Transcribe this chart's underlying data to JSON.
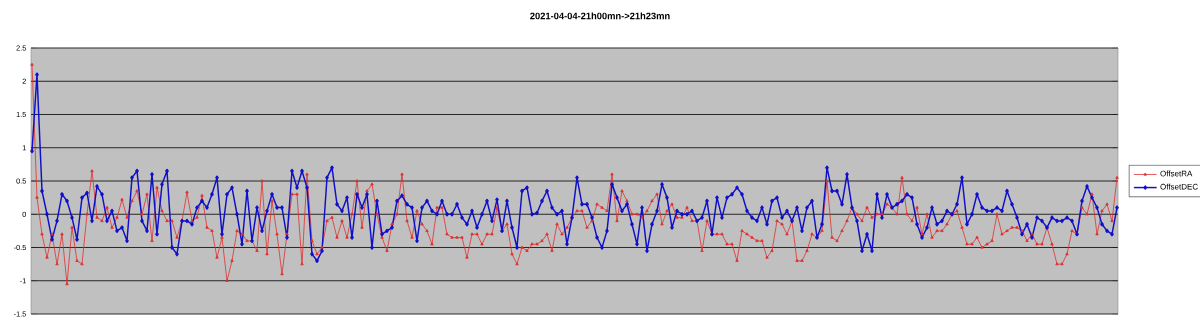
{
  "chart_data": {
    "type": "line",
    "title": "2021-04-04-21h00mn->21h23mn",
    "categories": [
      null,
      null,
      null,
      null,
      null,
      null,
      null,
      null,
      null,
      null,
      null,
      null,
      null,
      null,
      null,
      null,
      null,
      null,
      null,
      null,
      null,
      null,
      null,
      null,
      null,
      null,
      null,
      null,
      null,
      null,
      null,
      null,
      null,
      null,
      null,
      null,
      null,
      null,
      null,
      null,
      null,
      null,
      null,
      null,
      null,
      null,
      null,
      null,
      null,
      null,
      null,
      null,
      null,
      null,
      null,
      null,
      null,
      null,
      null,
      null,
      null,
      null,
      null,
      null,
      null,
      null,
      null,
      null,
      null,
      null,
      null,
      null,
      null,
      null,
      null,
      null,
      null,
      null,
      null,
      null,
      null,
      null,
      null,
      null,
      null,
      null,
      null,
      null,
      null,
      null,
      null,
      null,
      null,
      null,
      null,
      null,
      null,
      null,
      null,
      null,
      null,
      null,
      null,
      null,
      null,
      null,
      null,
      null,
      null,
      null,
      null,
      null,
      null,
      null,
      null,
      null,
      null,
      null,
      null,
      null,
      null,
      null,
      null,
      null,
      null,
      null,
      null,
      null,
      null,
      null,
      null,
      null,
      null,
      null,
      null,
      null,
      null,
      null,
      null,
      null,
      null,
      null,
      null,
      null,
      null,
      null,
      null,
      null,
      null,
      null,
      null,
      null,
      null,
      null,
      null,
      null,
      null,
      null,
      null,
      null,
      null,
      null,
      null,
      null,
      null,
      null,
      null,
      null,
      null,
      null,
      null,
      null,
      null,
      null,
      null,
      null,
      null,
      null,
      null,
      null,
      null,
      null,
      null,
      null,
      null,
      null,
      null,
      null,
      null,
      null,
      null,
      null,
      null,
      null,
      null,
      null,
      null,
      null,
      null,
      null,
      null,
      null,
      null,
      null,
      null,
      null,
      null,
      null,
      null,
      null,
      null,
      null,
      null,
      null,
      null,
      null,
      null,
      null
    ],
    "ylim": [
      -1.5,
      2.5
    ],
    "yticks": [
      {
        "value": 2.5,
        "label": "2.5"
      },
      {
        "value": 2,
        "label": "2"
      },
      {
        "value": 1.5,
        "label": "1.5"
      },
      {
        "value": 1,
        "label": "1"
      },
      {
        "value": 0.5,
        "label": "0.5"
      },
      {
        "value": 0,
        "label": "0"
      },
      {
        "value": -0.5,
        "label": "-0.5"
      },
      {
        "value": -1,
        "label": "-1"
      },
      {
        "value": -1.5,
        "label": "-1.5"
      }
    ],
    "tick_labels": "y",
    "grid": "y",
    "legend": "right",
    "series": [
      {
        "name": "OffsetRA",
        "color": "#e03030",
        "marker": "triangle",
        "values": [
          2.25,
          0.25,
          -0.3,
          -0.65,
          -0.3,
          -0.75,
          -0.3,
          -1.05,
          -0.2,
          -0.7,
          -0.75,
          0,
          0.65,
          -0.05,
          -0.1,
          0.1,
          -0.2,
          -0.05,
          0.22,
          -0.05,
          0.2,
          0.35,
          0,
          0.3,
          -0.4,
          0.4,
          0.05,
          -0.1,
          -0.1,
          -0.35,
          -0.1,
          0.33,
          -0.1,
          -0.05,
          0.28,
          -0.2,
          -0.25,
          -0.65,
          -0.35,
          -1,
          -0.7,
          -0.25,
          -0.3,
          -0.4,
          -0.4,
          -0.55,
          0.5,
          -0.6,
          0.2,
          -0.3,
          -0.9,
          -0.3,
          0.3,
          0.3,
          -0.75,
          0.6,
          -0.4,
          -0.6,
          -0.5,
          -0.1,
          -0.05,
          -0.35,
          -0.1,
          -0.35,
          0,
          0.5,
          -0.2,
          0.35,
          0.45,
          0,
          -0.35,
          -0.55,
          -0.15,
          0,
          0.6,
          -0.1,
          -0.35,
          0.05,
          -0.15,
          -0.25,
          -0.45,
          0.1,
          0.1,
          -0.3,
          -0.35,
          -0.35,
          -0.35,
          -0.65,
          -0.3,
          -0.3,
          -0.45,
          -0.3,
          -0.3,
          0.1,
          -0.25,
          -0.15,
          -0.6,
          -0.75,
          -0.5,
          -0.55,
          -0.45,
          -0.45,
          -0.4,
          -0.3,
          -0.55,
          -0.15,
          -0.3,
          -0.2,
          -0.05,
          0.05,
          0.05,
          -0.2,
          -0.1,
          0.15,
          0.1,
          0.05,
          0.6,
          -0.1,
          0.35,
          0.2,
          0,
          0,
          -0.05,
          0.05,
          0.2,
          0.3,
          -0.15,
          0.05,
          0.15,
          -0.05,
          -0.05,
          0.1,
          -0.1,
          -0.1,
          -0.55,
          -0.1,
          -0.3,
          -0.3,
          -0.3,
          -0.45,
          -0.45,
          -0.7,
          -0.25,
          -0.3,
          -0.35,
          -0.4,
          -0.4,
          -0.65,
          -0.55,
          -0.1,
          -0.15,
          -0.3,
          -0.1,
          -0.7,
          -0.7,
          -0.55,
          -0.3,
          -0.35,
          -0.25,
          0.5,
          -0.35,
          -0.4,
          -0.25,
          -0.1,
          0.1,
          0,
          -0.1,
          0.1,
          -0.05,
          0,
          0,
          0.15,
          0.1,
          0,
          0.55,
          0,
          -0.1,
          0.1,
          -0.3,
          0,
          -0.35,
          -0.25,
          -0.25,
          -0.15,
          0,
          0.05,
          -0.2,
          -0.45,
          -0.45,
          -0.35,
          -0.5,
          -0.45,
          -0.4,
          0,
          -0.3,
          -0.25,
          -0.2,
          -0.2,
          -0.25,
          -0.4,
          -0.3,
          -0.45,
          -0.45,
          -0.2,
          -0.45,
          -0.75,
          -0.75,
          -0.6,
          -0.25,
          -0.3,
          0.1,
          0,
          0.3,
          -0.3,
          0.05,
          0.15,
          -0.1,
          0.55
        ]
      },
      {
        "name": "OffsetDEC",
        "color": "#1010c8",
        "marker": "diamond",
        "values": [
          0.95,
          2.1,
          0.35,
          0,
          -0.38,
          -0.1,
          0.3,
          0.2,
          -0.05,
          -0.38,
          0.25,
          0.32,
          -0.1,
          0.42,
          0.3,
          -0.1,
          0.05,
          -0.25,
          -0.2,
          -0.4,
          0.55,
          0.65,
          -0.1,
          -0.25,
          0.6,
          -0.3,
          0.45,
          0.65,
          -0.5,
          -0.6,
          -0.1,
          -0.1,
          -0.15,
          0.1,
          0.2,
          0.1,
          0.3,
          0.55,
          -0.3,
          0.3,
          0.4,
          0,
          -0.45,
          0.35,
          -0.4,
          0.1,
          -0.25,
          0.05,
          0.3,
          0.1,
          0.1,
          -0.35,
          0.65,
          0.4,
          0.65,
          0.4,
          -0.6,
          -0.7,
          -0.55,
          0.55,
          0.7,
          0.15,
          0.05,
          0.25,
          -0.35,
          0.3,
          0.1,
          0.3,
          -0.5,
          0.2,
          -0.3,
          -0.25,
          -0.2,
          0.2,
          0.28,
          0.15,
          0.1,
          -0.4,
          0.1,
          0.2,
          0.05,
          0,
          0.2,
          0,
          0,
          0.15,
          -0.05,
          -0.15,
          0.05,
          -0.2,
          0,
          0.2,
          -0.1,
          0.22,
          -0.25,
          0.2,
          -0.2,
          -0.5,
          0.35,
          0.4,
          0,
          0.02,
          0.2,
          0.35,
          0.1,
          0,
          0.05,
          -0.45,
          -0.05,
          0.55,
          0.15,
          0.15,
          -0.05,
          -0.35,
          -0.5,
          -0.25,
          0.45,
          0.25,
          0.05,
          0.15,
          -0.15,
          -0.45,
          0.1,
          -0.55,
          -0.15,
          0.05,
          0.45,
          0.25,
          -0.2,
          0.05,
          0,
          0,
          0.05,
          -0.1,
          -0.05,
          0.2,
          -0.3,
          0.25,
          -0.05,
          0.25,
          0.3,
          0.4,
          0.3,
          0.05,
          -0.05,
          -0.1,
          0.1,
          -0.15,
          0.2,
          0.25,
          -0.05,
          0.05,
          -0.1,
          0.1,
          -0.25,
          0.1,
          0.2,
          -0.35,
          -0.15,
          0.7,
          0.35,
          0.35,
          0.15,
          0.6,
          0.1,
          -0.1,
          -0.55,
          -0.3,
          -0.55,
          0.3,
          -0.05,
          0.3,
          0.1,
          0.15,
          0.2,
          0.3,
          0.25,
          -0.15,
          -0.35,
          -0.2,
          0.1,
          -0.15,
          -0.1,
          0.05,
          0,
          0.15,
          0.55,
          -0.15,
          0,
          0.3,
          0.1,
          0.05,
          0.05,
          0.1,
          0.05,
          0.35,
          0.15,
          -0.05,
          -0.3,
          -0.15,
          -0.35,
          -0.05,
          -0.1,
          -0.2,
          -0.05,
          -0.1,
          -0.1,
          -0.05,
          -0.1,
          -0.3,
          0.2,
          0.42,
          0.25,
          0.1,
          -0.15,
          -0.25,
          -0.3,
          0.1
        ]
      }
    ]
  }
}
